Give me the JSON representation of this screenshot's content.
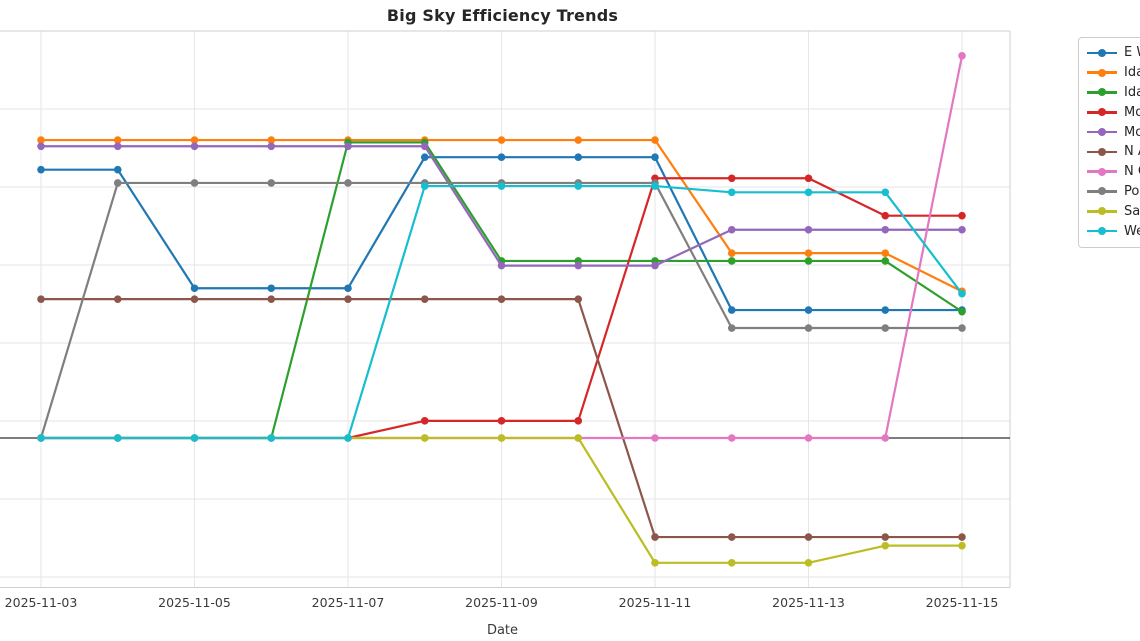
{
  "title": "Big Sky Efficiency Trends",
  "chart_data": {
    "type": "line",
    "title": "Big Sky Efficiency Trends",
    "xlabel": "Date",
    "ylabel": null,
    "x": [
      "2025-11-03",
      "2025-11-04",
      "2025-11-05",
      "2025-11-06",
      "2025-11-07",
      "2025-11-08",
      "2025-11-09",
      "2025-11-10",
      "2025-11-11",
      "2025-11-12",
      "2025-11-13",
      "2025-11-14",
      "2025-11-15"
    ],
    "x_tick_labels": [
      "2025-11-03",
      "2025-11-05",
      "2025-11-07",
      "2025-11-09",
      "2025-11-11",
      "2025-11-13",
      "2025-11-15"
    ],
    "y_axis_note": "y-axis labels cut off at left edge of image; values expressed in gridline units relative to the dark zero line",
    "grid": true,
    "legend_position": "upper right, clipped at right image edge",
    "zero_line": 0,
    "series": [
      {
        "name": "E Wa",
        "color": "#1f77b4",
        "values": [
          3.44,
          3.44,
          1.92,
          1.92,
          1.92,
          3.6,
          3.6,
          3.6,
          3.6,
          1.64,
          1.64,
          1.64,
          1.64
        ]
      },
      {
        "name": "Idaho",
        "color": "#ff7f0e",
        "values": [
          3.82,
          3.82,
          3.82,
          3.82,
          3.82,
          3.82,
          3.82,
          3.82,
          3.82,
          2.37,
          2.37,
          2.37,
          1.88
        ]
      },
      {
        "name": "Idaho",
        "color": "#2ca02c",
        "values": [
          0,
          0,
          0,
          0,
          3.79,
          3.79,
          2.27,
          2.27,
          2.27,
          2.27,
          2.27,
          2.27,
          1.62
        ]
      },
      {
        "name": "Mont",
        "color": "#d62728",
        "values": [
          0,
          0,
          0,
          0,
          0,
          0.22,
          0.22,
          0.22,
          3.33,
          3.33,
          3.33,
          2.85,
          2.85
        ]
      },
      {
        "name": "Mont",
        "color": "#9467bd",
        "values": [
          3.74,
          3.74,
          3.74,
          3.74,
          3.74,
          3.74,
          2.21,
          2.21,
          2.21,
          2.67,
          2.67,
          2.67,
          2.67
        ]
      },
      {
        "name": "N Ari",
        "color": "#8c564b",
        "values": [
          1.78,
          1.78,
          1.78,
          1.78,
          1.78,
          1.78,
          1.78,
          1.78,
          -1.27,
          -1.27,
          -1.27,
          -1.27,
          -1.27
        ]
      },
      {
        "name": "N Col",
        "color": "#e377c2",
        "values": [
          0,
          0,
          0,
          0,
          0,
          0,
          0,
          0,
          0,
          0,
          0,
          0,
          4.9
        ]
      },
      {
        "name": "Portla",
        "color": "#7f7f7f",
        "values": [
          0,
          3.27,
          3.27,
          3.27,
          3.27,
          3.27,
          3.27,
          3.27,
          3.27,
          1.41,
          1.41,
          1.41,
          1.41
        ]
      },
      {
        "name": "Sacra",
        "color": "#bcbd22",
        "values": [
          0,
          0,
          0,
          0,
          0,
          0,
          0,
          0,
          -1.6,
          -1.6,
          -1.6,
          -1.38,
          -1.38
        ]
      },
      {
        "name": "Webe",
        "color": "#17becf",
        "values": [
          0,
          0,
          0,
          0,
          0,
          3.23,
          3.23,
          3.23,
          3.23,
          3.15,
          3.15,
          3.15,
          1.85
        ]
      }
    ]
  },
  "colors": {
    "background": "#ffffff",
    "gridline": "#e6e6e6",
    "spine": "#cfcfcf",
    "zero_line": "#2d2d2d",
    "tick_text": "#3a3a3a",
    "title_text": "#262626",
    "legend_border": "#cccccc"
  }
}
